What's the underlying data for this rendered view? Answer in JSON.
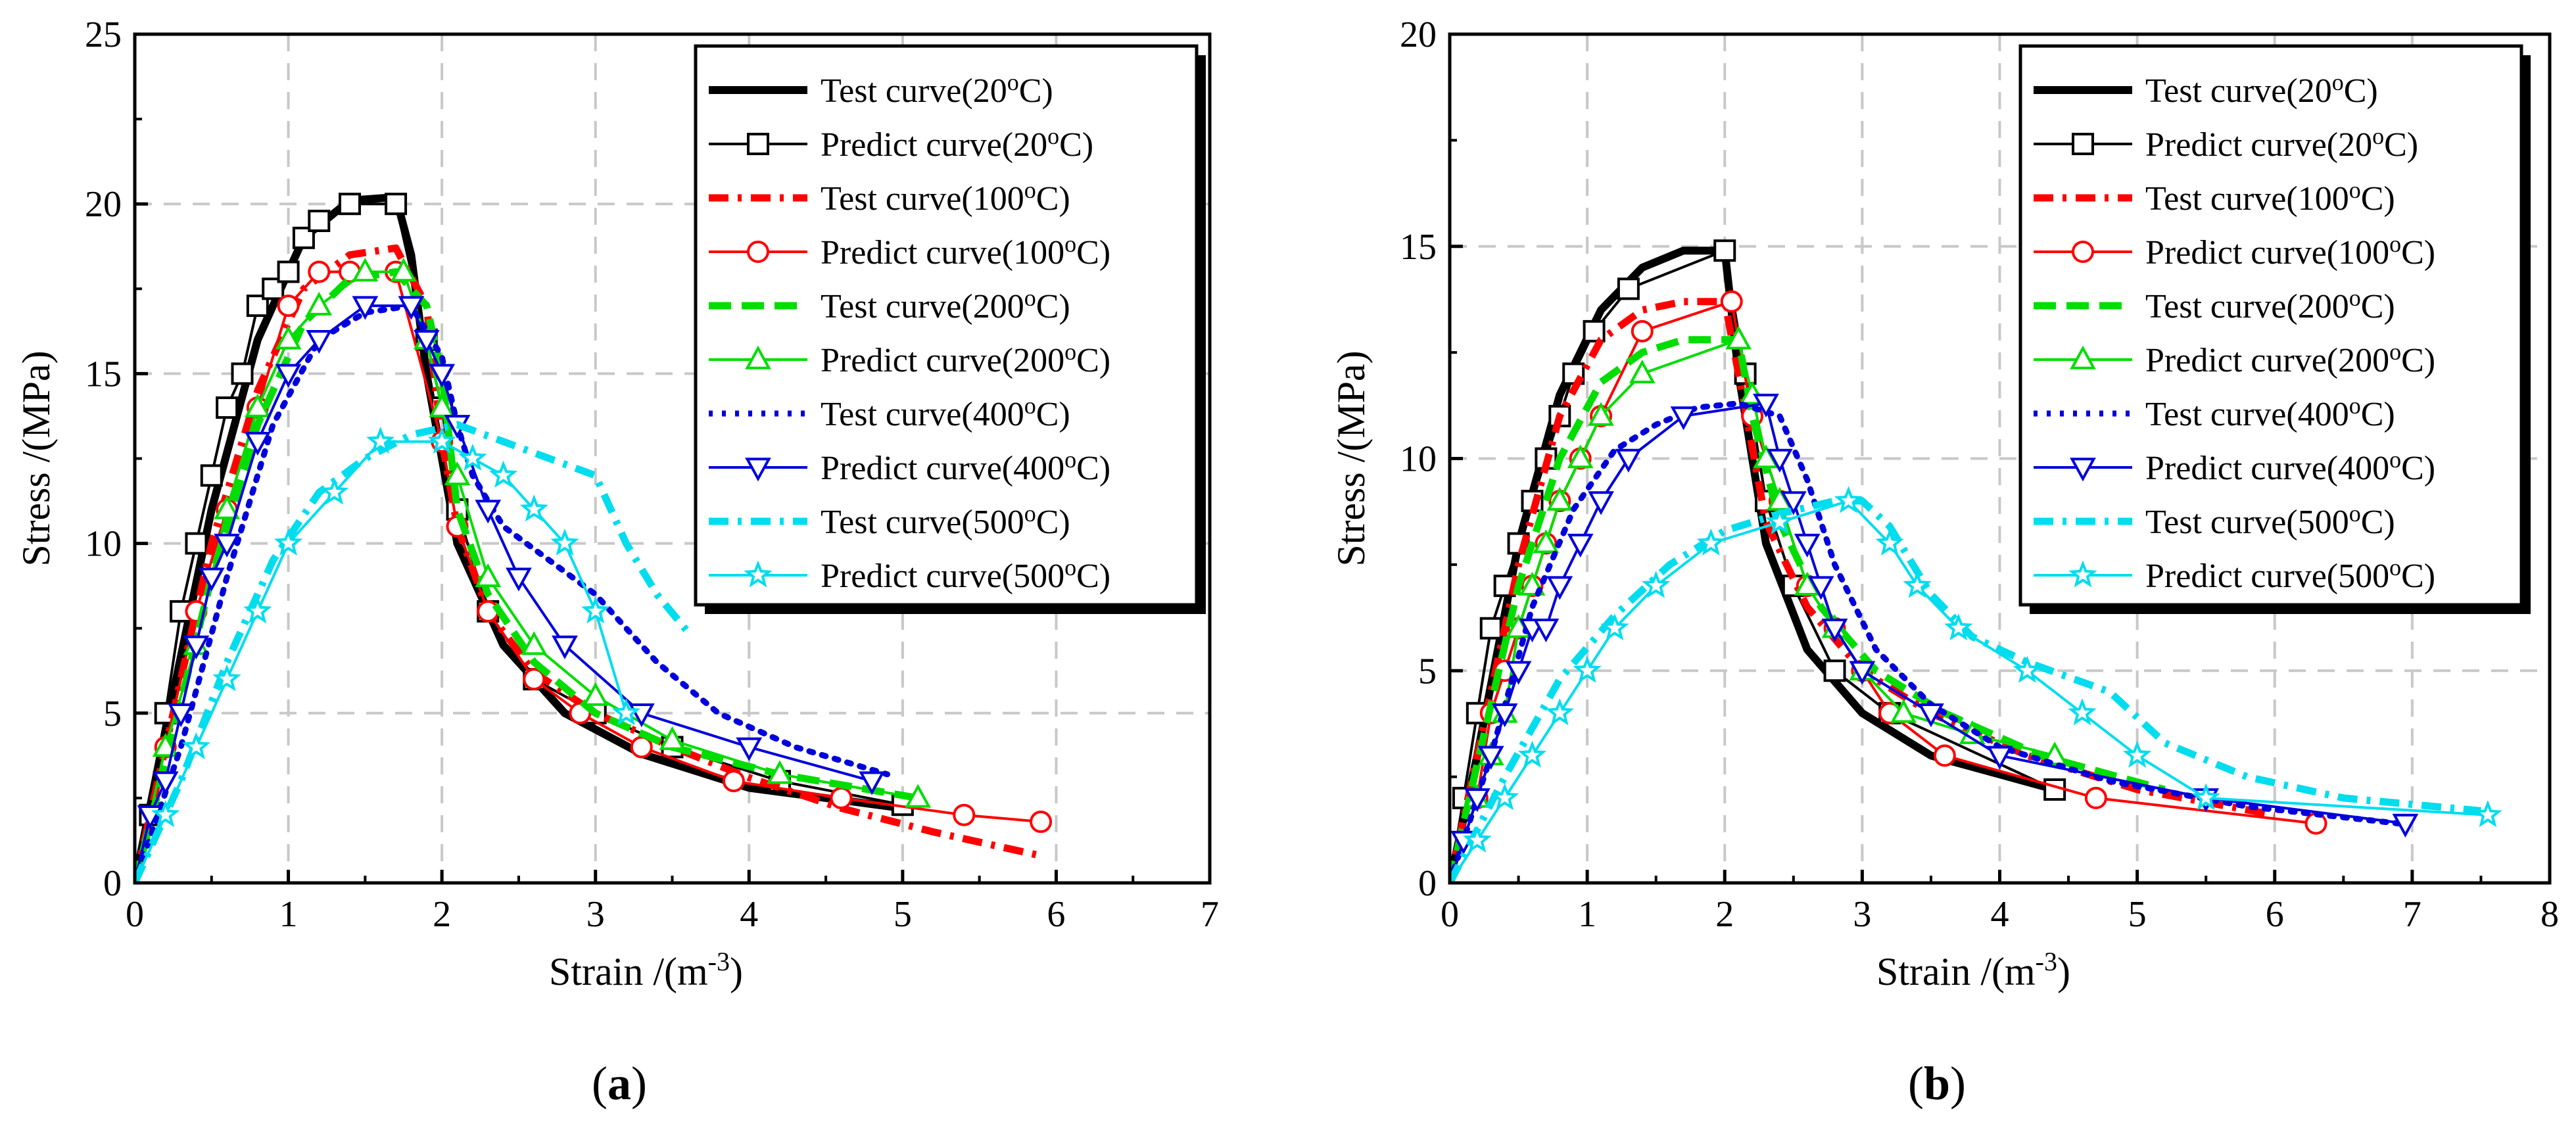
{
  "figure": {
    "panel_labels": [
      "a",
      "b"
    ]
  },
  "legend_labels": [
    "Test curve(20oC)",
    "Predict curve(20oC)",
    "Test curve(100oC)",
    "Predict curve(100oC)",
    "Test curve(200oC)",
    "Predict curve(200oC)",
    "Test curve(400oC)",
    "Predict curve(400oC)",
    "Test curve(500oC)",
    "Predict curve(500oC)"
  ],
  "series_styles": [
    {
      "color": "#000000",
      "line": "solid",
      "marker": "none"
    },
    {
      "color": "#000000",
      "line": "thin",
      "marker": "square"
    },
    {
      "color": "#ff0000",
      "line": "dashdot",
      "marker": "none"
    },
    {
      "color": "#ff0000",
      "line": "thin",
      "marker": "circle"
    },
    {
      "color": "#00dd00",
      "line": "dash",
      "marker": "none"
    },
    {
      "color": "#00dd00",
      "line": "thin",
      "marker": "triangle-up"
    },
    {
      "color": "#0000dd",
      "line": "dot",
      "marker": "none"
    },
    {
      "color": "#0000dd",
      "line": "thin",
      "marker": "triangle-down"
    },
    {
      "color": "#00ddee",
      "line": "dashdot",
      "marker": "none"
    },
    {
      "color": "#00ddee",
      "line": "thin",
      "marker": "star"
    }
  ],
  "chart_data": [
    {
      "type": "line",
      "panel": "(a)",
      "title": "",
      "xlabel": "Strain /(m-3)",
      "ylabel": "Stress /(MPa)",
      "xlim": [
        0,
        7
      ],
      "ylim": [
        0,
        25
      ],
      "xticks": [
        0,
        1,
        2,
        3,
        4,
        5,
        6,
        7
      ],
      "yticks": [
        0,
        5,
        10,
        15,
        20,
        25
      ],
      "grid": true,
      "legend_position": "top-right",
      "series": [
        {
          "name": "Test curve(20oC)",
          "x": [
            0,
            0.2,
            0.5,
            0.8,
            1.1,
            1.4,
            1.7,
            1.8,
            1.9,
            2.1,
            2.4,
            2.8,
            3.3,
            4.0,
            5.0
          ],
          "y": [
            0,
            4.5,
            11,
            16,
            19,
            20.1,
            20.2,
            18.5,
            15,
            10,
            7,
            5,
            3.8,
            2.8,
            2.2
          ]
        },
        {
          "name": "Predict curve(20oC)",
          "x": [
            0,
            0.1,
            0.2,
            0.3,
            0.4,
            0.5,
            0.6,
            0.7,
            0.8,
            0.9,
            1.0,
            1.1,
            1.2,
            1.4,
            1.7,
            1.9,
            2.0,
            2.1,
            2.3,
            2.6,
            3.0,
            3.5,
            4.2,
            5.0
          ],
          "y": [
            0,
            2,
            5,
            8,
            10,
            12,
            14,
            15,
            17,
            17.5,
            18,
            19,
            19.5,
            20,
            20,
            16,
            14,
            11,
            8,
            6,
            5,
            4,
            3,
            2.3
          ]
        },
        {
          "name": "Test curve(100oC)",
          "x": [
            0,
            0.2,
            0.5,
            0.8,
            1.1,
            1.4,
            1.7,
            1.9,
            2.0,
            2.1,
            2.3,
            2.6,
            3.0,
            3.5,
            4.0,
            4.6,
            5.2,
            5.9
          ],
          "y": [
            0,
            4,
            10,
            14.5,
            17.5,
            18.5,
            18.7,
            17,
            13,
            10.5,
            8,
            6.2,
            5,
            4,
            3.1,
            2.2,
            1.5,
            0.8
          ]
        },
        {
          "name": "Predict curve(100oC)",
          "x": [
            0,
            0.2,
            0.4,
            0.6,
            0.8,
            1.0,
            1.2,
            1.4,
            1.7,
            2.0,
            2.1,
            2.3,
            2.6,
            2.9,
            3.3,
            3.9,
            4.6,
            5.4,
            5.9
          ],
          "y": [
            0,
            4,
            8,
            11,
            14,
            17,
            18,
            18,
            18,
            13,
            10.5,
            8,
            6,
            5,
            4,
            3,
            2.5,
            2,
            1.8
          ]
        },
        {
          "name": "Test curve(200oC)",
          "x": [
            0,
            0.2,
            0.5,
            0.8,
            1.1,
            1.4,
            1.7,
            1.9,
            2.0,
            2.1,
            2.3,
            2.6,
            3.0,
            3.5,
            4.2,
            5.1
          ],
          "y": [
            0,
            3.5,
            9,
            13.5,
            16.5,
            17.8,
            18,
            17,
            15,
            11,
            8.5,
            6.5,
            5,
            4,
            3.2,
            2.5
          ]
        },
        {
          "name": "Predict curve(200oC)",
          "x": [
            0,
            0.2,
            0.4,
            0.6,
            0.8,
            1.0,
            1.2,
            1.5,
            1.75,
            1.9,
            2.0,
            2.1,
            2.3,
            2.6,
            3.0,
            3.5,
            4.2,
            5.1
          ],
          "y": [
            0,
            4,
            7,
            11,
            14,
            16,
            17,
            18,
            18,
            16,
            14,
            12,
            9,
            7,
            5.5,
            4.2,
            3.2,
            2.5
          ]
        },
        {
          "name": "Test curve(400oC)",
          "x": [
            0,
            0.3,
            0.6,
            0.9,
            1.2,
            1.5,
            1.8,
            2.0,
            2.1,
            2.2,
            2.4,
            2.7,
            3.0,
            3.4,
            3.8,
            4.3,
            4.9
          ],
          "y": [
            0,
            4,
            9,
            13.5,
            16,
            16.8,
            17,
            15.5,
            13.5,
            12,
            10.5,
            9.5,
            8.5,
            6.5,
            5,
            4,
            3.2
          ]
        },
        {
          "name": "Predict curve(400oC)",
          "x": [
            0,
            0.1,
            0.2,
            0.3,
            0.4,
            0.5,
            0.6,
            0.8,
            1.0,
            1.2,
            1.5,
            1.8,
            1.9,
            2.0,
            2.1,
            2.3,
            2.5,
            2.8,
            3.3,
            4.0,
            4.8
          ],
          "y": [
            0,
            2,
            3,
            5,
            7,
            9,
            10,
            13,
            15,
            16,
            17,
            17,
            16,
            15,
            13.5,
            11,
            9,
            7,
            5,
            4,
            3
          ]
        },
        {
          "name": "Test curve(500oC)",
          "x": [
            0,
            0.3,
            0.6,
            0.9,
            1.2,
            1.5,
            1.8,
            2.1,
            2.4,
            2.7,
            3.0,
            3.2,
            3.4,
            3.6
          ],
          "y": [
            0,
            3,
            6.5,
            9.5,
            11.5,
            12.5,
            13.2,
            13.5,
            13,
            12.5,
            12,
            10,
            8.5,
            7.4
          ]
        },
        {
          "name": "Predict curve(500oC)",
          "x": [
            0,
            0.2,
            0.4,
            0.6,
            0.8,
            1.0,
            1.3,
            1.6,
            2.0,
            2.2,
            2.4,
            2.6,
            2.8,
            3.0,
            3.2
          ],
          "y": [
            0,
            2,
            4,
            6,
            8,
            10,
            11.5,
            13,
            13,
            12.5,
            12,
            11,
            10,
            8,
            5
          ]
        }
      ]
    },
    {
      "type": "line",
      "panel": "(b)",
      "title": "",
      "xlabel": "Strain /(m-3)",
      "ylabel": "Stress /(MPa)",
      "xlim": [
        0,
        8
      ],
      "ylim": [
        0,
        20
      ],
      "xticks": [
        0,
        1,
        2,
        3,
        4,
        5,
        6,
        7,
        8
      ],
      "yticks": [
        0,
        5,
        10,
        15,
        20
      ],
      "grid": true,
      "legend_position": "top-right",
      "series": [
        {
          "name": "Test curve(20oC)",
          "x": [
            0,
            0.2,
            0.5,
            0.8,
            1.1,
            1.4,
            1.7,
            2.0,
            2.1,
            2.3,
            2.6,
            3.0,
            3.5,
            4.4
          ],
          "y": [
            0,
            3,
            8,
            11.5,
            13.5,
            14.5,
            14.9,
            14.9,
            12,
            8,
            5.5,
            4,
            3,
            2.2
          ]
        },
        {
          "name": "Predict curve(20oC)",
          "x": [
            0,
            0.1,
            0.2,
            0.3,
            0.4,
            0.5,
            0.6,
            0.7,
            0.8,
            0.9,
            1.05,
            1.3,
            2.0,
            2.15,
            2.3,
            2.5,
            2.8,
            3.2,
            4.4
          ],
          "y": [
            0,
            2,
            4,
            6,
            7,
            8,
            9,
            10,
            11,
            12,
            13,
            14,
            14.9,
            12,
            9,
            7,
            5,
            4,
            2.2
          ]
        },
        {
          "name": "Test curve(100oC)",
          "x": [
            0,
            0.2,
            0.5,
            0.8,
            1.1,
            1.4,
            1.7,
            2.0,
            2.1,
            2.3,
            2.6,
            3.0,
            3.5,
            4.2,
            5.0,
            6.0
          ],
          "y": [
            0,
            3,
            7.5,
            11,
            12.8,
            13.5,
            13.7,
            13.7,
            12,
            8.5,
            6.5,
            5,
            4,
            3,
            2.2,
            1.6
          ]
        },
        {
          "name": "Predict curve(100oC)",
          "x": [
            0,
            0.2,
            0.3,
            0.4,
            0.5,
            0.6,
            0.7,
            0.8,
            0.95,
            1.1,
            1.4,
            2.05,
            2.2,
            2.4,
            2.6,
            2.8,
            3.0,
            3.2,
            3.6,
            4.7,
            6.3
          ],
          "y": [
            0,
            2,
            4,
            5,
            6,
            7,
            8,
            9,
            10,
            11,
            13,
            13.7,
            11,
            9,
            7,
            6,
            5,
            4,
            3,
            2,
            1.4
          ]
        },
        {
          "name": "Test curve(200oC)",
          "x": [
            0,
            0.2,
            0.5,
            0.8,
            1.1,
            1.4,
            1.7,
            2.1,
            2.2,
            2.4,
            2.7,
            3.1,
            3.6,
            4.3,
            5.2
          ],
          "y": [
            0,
            2.8,
            7,
            10,
            11.8,
            12.5,
            12.8,
            12.8,
            11,
            8.5,
            6.5,
            5,
            4,
            3,
            2.2
          ]
        },
        {
          "name": "Predict curve(200oC)",
          "x": [
            0,
            0.2,
            0.3,
            0.4,
            0.5,
            0.6,
            0.7,
            0.8,
            0.95,
            1.1,
            1.4,
            2.1,
            2.2,
            2.3,
            2.4,
            2.6,
            2.8,
            3.0,
            3.3,
            3.8,
            4.4
          ],
          "y": [
            0,
            2,
            3,
            4,
            6,
            7,
            8,
            9,
            10,
            11,
            12,
            12.8,
            11.5,
            10,
            9,
            7,
            6,
            5,
            4,
            3.5,
            3
          ]
        },
        {
          "name": "Test curve(400oC)",
          "x": [
            0,
            0.3,
            0.6,
            0.9,
            1.2,
            1.5,
            1.8,
            2.1,
            2.4,
            2.6,
            2.8,
            3.1,
            3.5,
            4.0,
            4.8,
            5.8,
            6.9
          ],
          "y": [
            0,
            3,
            6.5,
            8.8,
            10.2,
            10.8,
            11.2,
            11.3,
            11,
            9.5,
            7.5,
            5.5,
            4.2,
            3.2,
            2.4,
            1.8,
            1.4
          ]
        },
        {
          "name": "Predict curve(400oC)",
          "x": [
            0,
            0.1,
            0.2,
            0.3,
            0.4,
            0.5,
            0.6,
            0.7,
            0.8,
            0.95,
            1.1,
            1.3,
            1.7,
            2.3,
            2.4,
            2.5,
            2.6,
            2.7,
            2.8,
            3.0,
            3.5,
            4.0,
            5.5,
            6.95
          ],
          "y": [
            0,
            1,
            2,
            3,
            4,
            5,
            6,
            6,
            7,
            8,
            9,
            10,
            11,
            11.3,
            10,
            9,
            8,
            7,
            6,
            5,
            4,
            3,
            2,
            1.4
          ]
        },
        {
          "name": "Test curve(500oC)",
          "x": [
            0,
            0.4,
            0.8,
            1.2,
            1.6,
            2.0,
            2.4,
            2.8,
            3.0,
            3.2,
            3.5,
            3.8,
            4.2,
            4.8,
            5.2,
            5.8,
            6.5,
            7.5
          ],
          "y": [
            0,
            2.5,
            4.8,
            6.3,
            7.5,
            8.3,
            8.7,
            9.0,
            9.0,
            8.4,
            6.8,
            5.8,
            5.2,
            4.5,
            3.3,
            2.5,
            2.0,
            1.7
          ]
        },
        {
          "name": "Predict curve(500oC)",
          "x": [
            0,
            0.2,
            0.4,
            0.6,
            0.8,
            1.0,
            1.2,
            1.5,
            1.9,
            2.4,
            2.9,
            3.2,
            3.4,
            3.7,
            4.2,
            4.6,
            5.0,
            5.5,
            7.55
          ],
          "y": [
            0,
            1,
            2,
            3,
            4,
            5,
            6,
            7,
            8,
            8.5,
            9,
            8,
            7,
            6,
            5,
            4,
            3,
            2,
            1.6
          ]
        }
      ]
    }
  ]
}
